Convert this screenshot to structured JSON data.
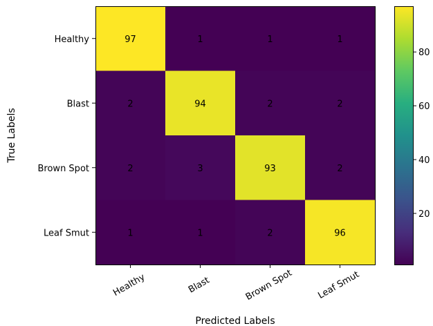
{
  "chart_data": {
    "type": "heatmap",
    "title": "",
    "xlabel": "Predicted Labels",
    "ylabel": "True Labels",
    "x_categories": [
      "Healthy",
      "Blast",
      "Brown Spot",
      "Leaf Smut"
    ],
    "y_categories": [
      "Healthy",
      "Blast",
      "Brown Spot",
      "Leaf Smut"
    ],
    "values": [
      [
        97,
        1,
        1,
        1
      ],
      [
        2,
        94,
        2,
        2
      ],
      [
        2,
        3,
        93,
        2
      ],
      [
        1,
        1,
        2,
        96
      ]
    ],
    "colormap": "viridis",
    "color_range": [
      1,
      97
    ],
    "colorbar_ticks": [
      20,
      40,
      60,
      80
    ],
    "x_tick_rotation": "30 degrees",
    "annotation_color": "#000000"
  }
}
